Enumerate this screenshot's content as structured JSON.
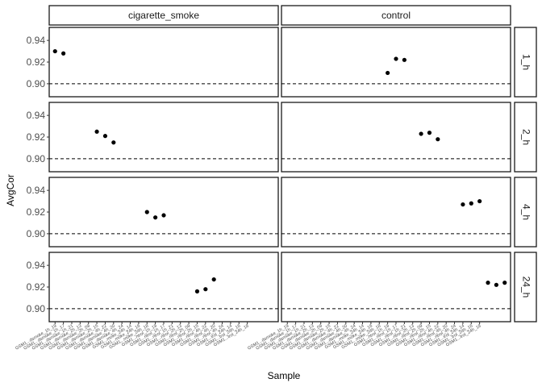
{
  "chart_data": {
    "type": "scatter",
    "xlabel": "Sample",
    "ylabel": "AvgCor",
    "ylim": [
      0.888,
      0.952
    ],
    "y_ticks": [
      "0.90",
      "0.92",
      "0.94"
    ],
    "y_tick_values": [
      0.9,
      0.92,
      0.94
    ],
    "reference_line_y": 0.9,
    "grid": false,
    "column_facets": [
      "cigarette_smoke",
      "control"
    ],
    "row_facets": [
      "1_h",
      "2_h",
      "4_h",
      "24_h"
    ],
    "x_tick_count": 24,
    "x_tick_labels": [
      "GSM1...dsmoke_1h_19",
      "GSM1...dsmoke_1h_17",
      "GSM1...dsmoke_1h_21",
      "GSM1...dsmoke_2h_13",
      "GSM1...dsmoke_2h_09",
      "GSM1...dsmoke_2h_15",
      "GSM1...dsmoke_4h_22",
      "GSM1...dsmoke_4h_20",
      "GSM1...dsmoke_4h_24",
      "GSM1...moke_24h_14",
      "GSM1...moke_24h_16",
      "GSM1...moke_24h_18",
      "GSM1...ntrol_1h_19",
      "GSM1...ntrol_1h_17",
      "GSM1...ntrol_1h_21",
      "GSM1...ntrol_2h_13",
      "GSM1...ntrol_2h_09",
      "GSM1...ntrol_2h_15",
      "GSM1...ntrol_4h_22",
      "GSM1...ntrol_4h_20",
      "GSM1...ntrol_4h_24",
      "GSM1...trol_24h_14",
      "GSM1...trol_24h_16",
      "GSM1...trol_24h_18"
    ],
    "panels": [
      {
        "col": "cigarette_smoke",
        "row": "1_h",
        "points": [
          {
            "x": 1,
            "y": 0.93
          },
          {
            "x": 2,
            "y": 0.928
          }
        ]
      },
      {
        "col": "control",
        "row": "1_h",
        "points": [
          {
            "x": 13,
            "y": 0.91
          },
          {
            "x": 14,
            "y": 0.923
          },
          {
            "x": 15,
            "y": 0.922
          }
        ]
      },
      {
        "col": "cigarette_smoke",
        "row": "2_h",
        "points": [
          {
            "x": 6,
            "y": 0.925
          },
          {
            "x": 7,
            "y": 0.921
          },
          {
            "x": 8,
            "y": 0.915
          }
        ]
      },
      {
        "col": "control",
        "row": "2_h",
        "points": [
          {
            "x": 17,
            "y": 0.923
          },
          {
            "x": 18,
            "y": 0.924
          },
          {
            "x": 19,
            "y": 0.918
          }
        ]
      },
      {
        "col": "cigarette_smoke",
        "row": "4_h",
        "points": [
          {
            "x": 12,
            "y": 0.92
          },
          {
            "x": 13,
            "y": 0.915
          },
          {
            "x": 14,
            "y": 0.917
          }
        ]
      },
      {
        "col": "control",
        "row": "4_h",
        "points": [
          {
            "x": 22,
            "y": 0.927
          },
          {
            "x": 23,
            "y": 0.928
          },
          {
            "x": 24,
            "y": 0.93
          }
        ]
      },
      {
        "col": "cigarette_smoke",
        "row": "24_h",
        "points": [
          {
            "x": 18,
            "y": 0.916
          },
          {
            "x": 19,
            "y": 0.918
          },
          {
            "x": 20,
            "y": 0.927
          }
        ]
      },
      {
        "col": "control",
        "row": "24_h",
        "points": [
          {
            "x": 25,
            "y": 0.924
          },
          {
            "x": 26,
            "y": 0.922
          },
          {
            "x": 27,
            "y": 0.924
          }
        ]
      }
    ],
    "x_min": 0.3,
    "x_max": 27.7
  }
}
